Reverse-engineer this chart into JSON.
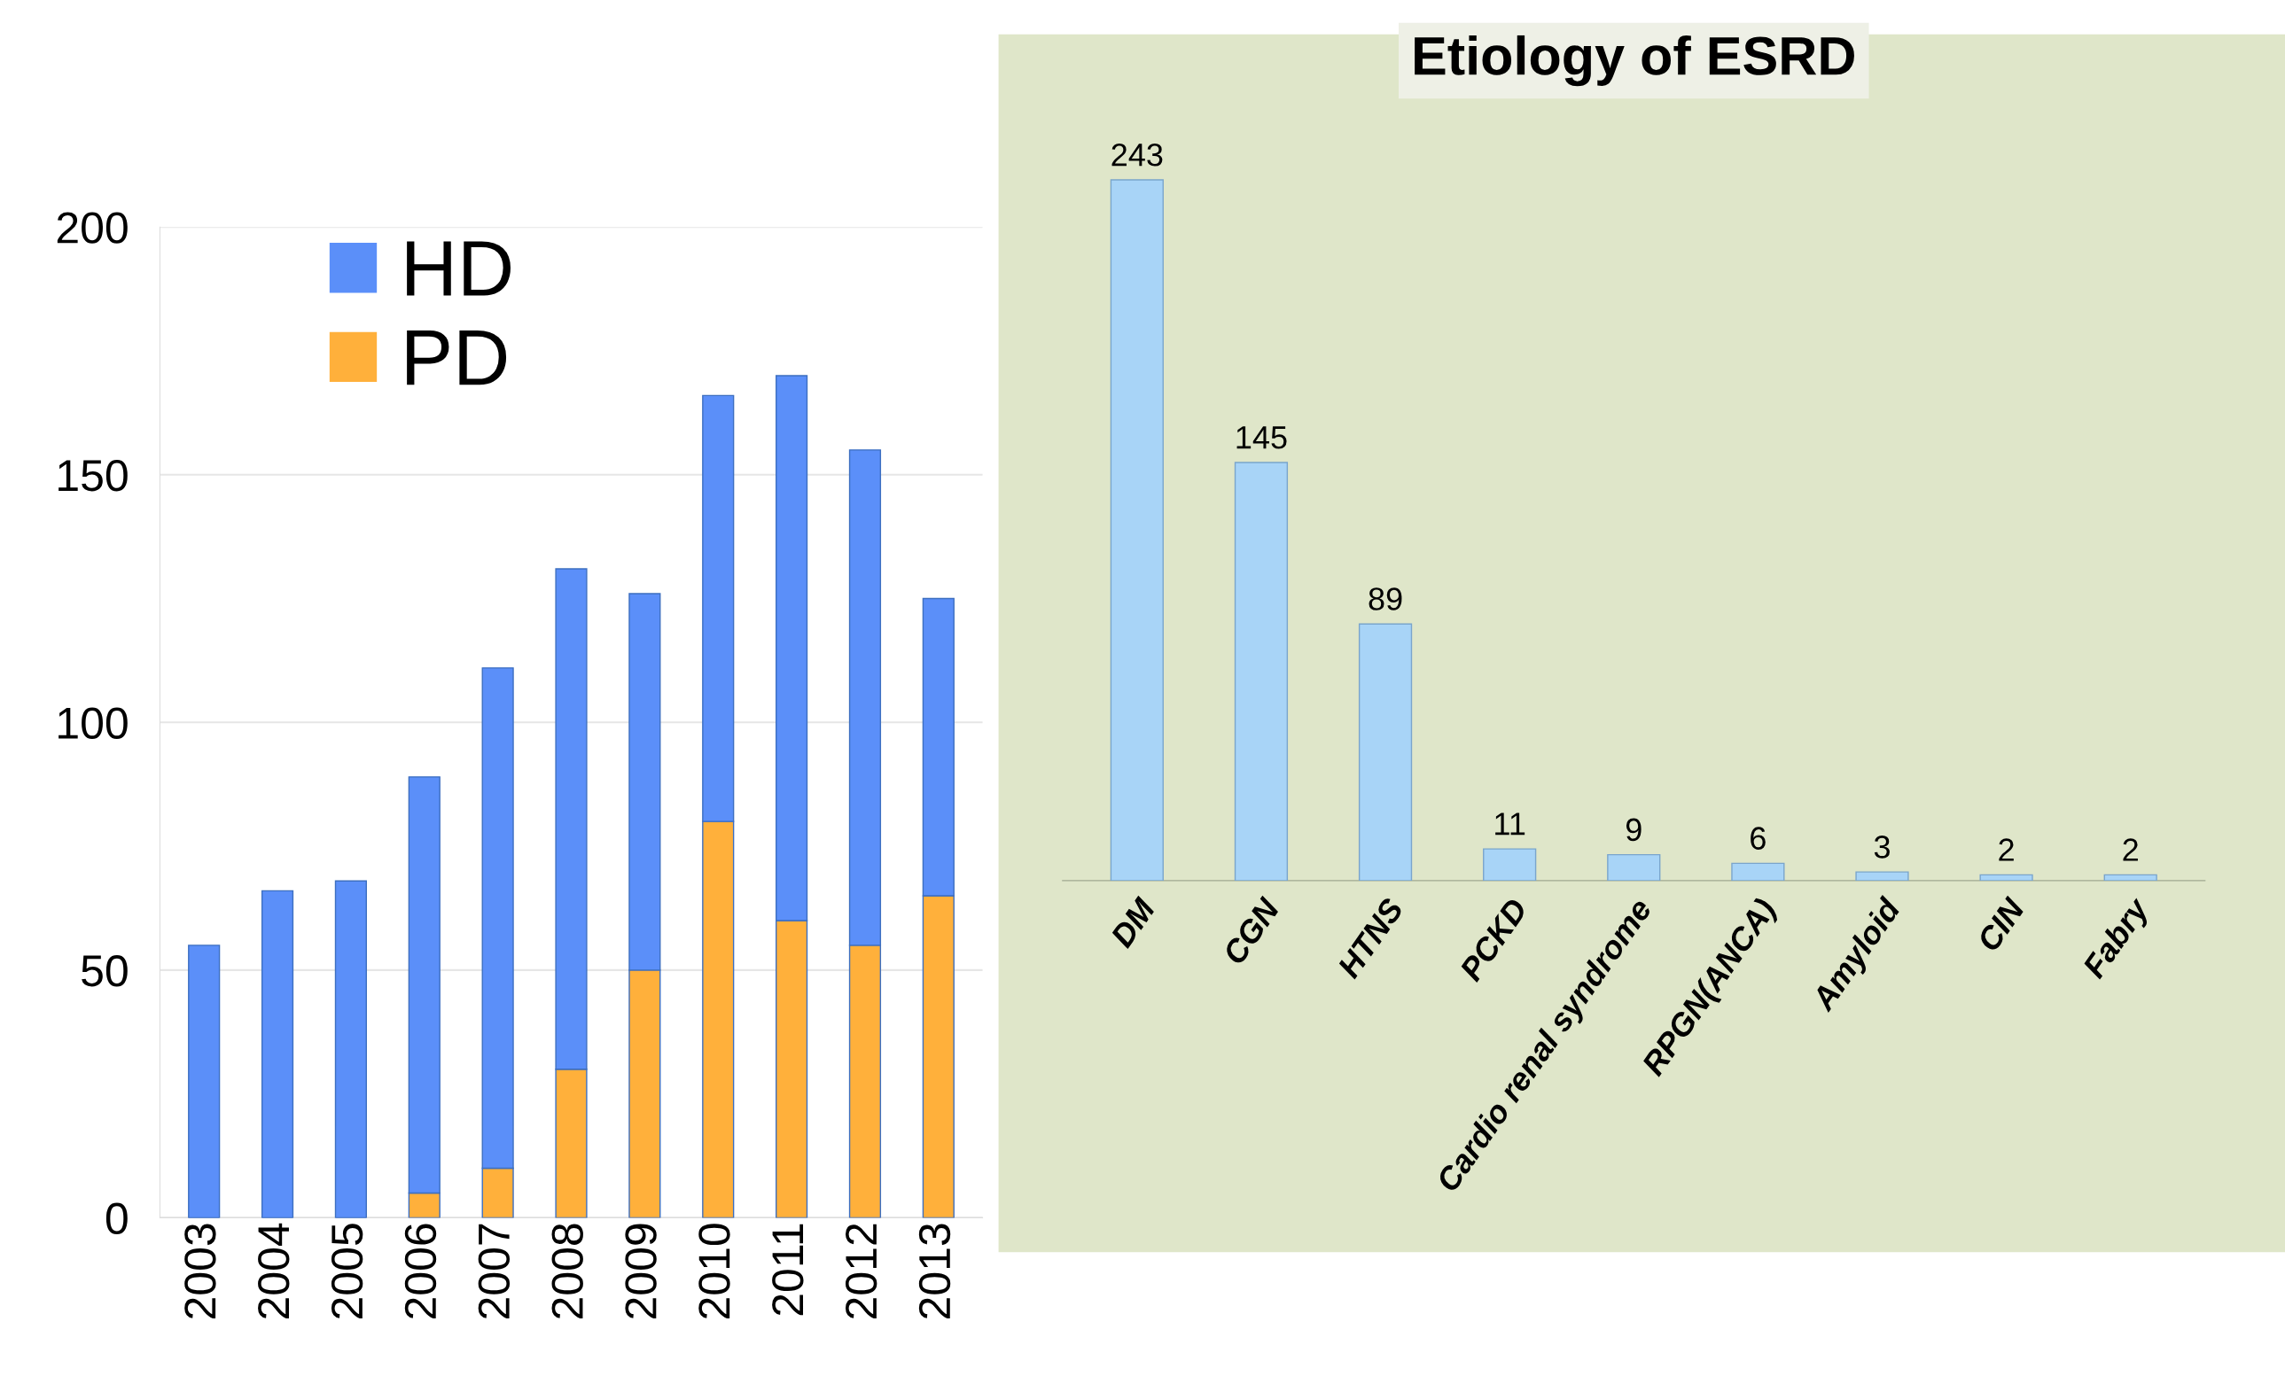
{
  "chart_data": [
    {
      "type": "bar",
      "stacked": true,
      "categories": [
        "2003",
        "2004",
        "2005",
        "2006",
        "2007",
        "2008",
        "2009",
        "2010",
        "2011",
        "2012",
        "2013"
      ],
      "series": [
        {
          "name": "PD",
          "color": "#ffb03b",
          "values": [
            0,
            0,
            0,
            5,
            10,
            30,
            50,
            80,
            60,
            55,
            65
          ]
        },
        {
          "name": "HD",
          "color": "#5b8ff9",
          "values": [
            55,
            66,
            68,
            84,
            101,
            101,
            76,
            86,
            110,
            100,
            60
          ]
        }
      ],
      "ylim": [
        0,
        200
      ],
      "yticks": [
        0,
        50,
        100,
        150,
        200
      ],
      "grid": "y",
      "legend": "top left"
    },
    {
      "type": "bar",
      "title": "Etiology of ESRD",
      "categories": [
        "DM",
        "CGN",
        "HTNS",
        "PCKD",
        "Cardio renal syndrome",
        "RPGN(ANCA)",
        "Amyloid",
        "CIN",
        "Fabry"
      ],
      "values": [
        243,
        145,
        89,
        11,
        9,
        6,
        3,
        2,
        2
      ],
      "color": "#a8d4f7",
      "data_labels": true
    }
  ]
}
